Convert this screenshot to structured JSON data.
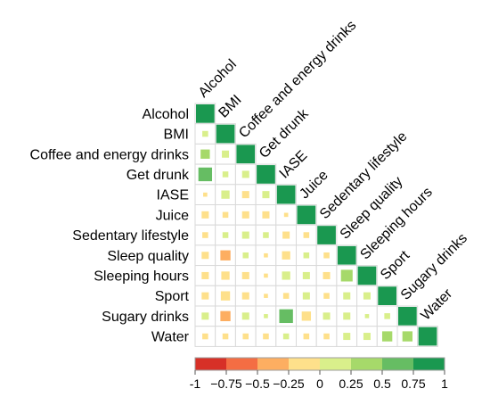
{
  "chart_data": {
    "type": "heatmap",
    "subtype": "lower-triangle correlation matrix (square size ∝ |r|)",
    "title": "",
    "variables": [
      "Alcohol",
      "BMI",
      "Coffee and energy drinks",
      "Get drunk",
      "IASE",
      "Juice",
      "Sedentary lifestyle",
      "Sleep quality",
      "Sleeping hours",
      "Sport",
      "Sugary drinks",
      "Water"
    ],
    "matrix": [
      [
        1
      ],
      [
        0.1,
        1
      ],
      [
        0.25,
        0.15,
        1
      ],
      [
        0.55,
        0.1,
        0.15,
        1
      ],
      [
        -0.05,
        0.2,
        -0.15,
        0.15,
        1
      ],
      [
        -0.15,
        -0.1,
        -0.15,
        -0.15,
        -0.05,
        1
      ],
      [
        -0.1,
        0.1,
        0.15,
        0.1,
        -0.15,
        -0.1,
        1
      ],
      [
        -0.15,
        -0.3,
        0.1,
        -0.05,
        -0.2,
        0.1,
        -0.1,
        1
      ],
      [
        -0.15,
        -0.2,
        -0.15,
        -0.05,
        0.2,
        0.15,
        -0.15,
        0.4,
        1
      ],
      [
        -0.15,
        -0.25,
        -0.15,
        -0.05,
        -0.1,
        0.15,
        -0.1,
        0.15,
        0.15,
        1
      ],
      [
        0.15,
        -0.3,
        0.15,
        0.05,
        0.55,
        -0.25,
        0.15,
        0.15,
        0.05,
        0.1,
        1
      ],
      [
        -0.1,
        -0.1,
        -0.1,
        -0.1,
        0.1,
        -0.1,
        -0.1,
        0.15,
        0.15,
        0.3,
        0.3,
        1
      ]
    ],
    "colorbar": {
      "ticks": [
        "-1",
        "−0.75",
        "−0.5",
        "−0.25",
        "0",
        "0.25",
        "0.5",
        "0.75",
        "1"
      ],
      "range": [
        -1,
        1
      ],
      "colors": [
        "#d73027",
        "#f46d43",
        "#fdae61",
        "#fee08b",
        "#d9ef8b",
        "#a6d96a",
        "#66bd63",
        "#1a9850"
      ]
    }
  }
}
